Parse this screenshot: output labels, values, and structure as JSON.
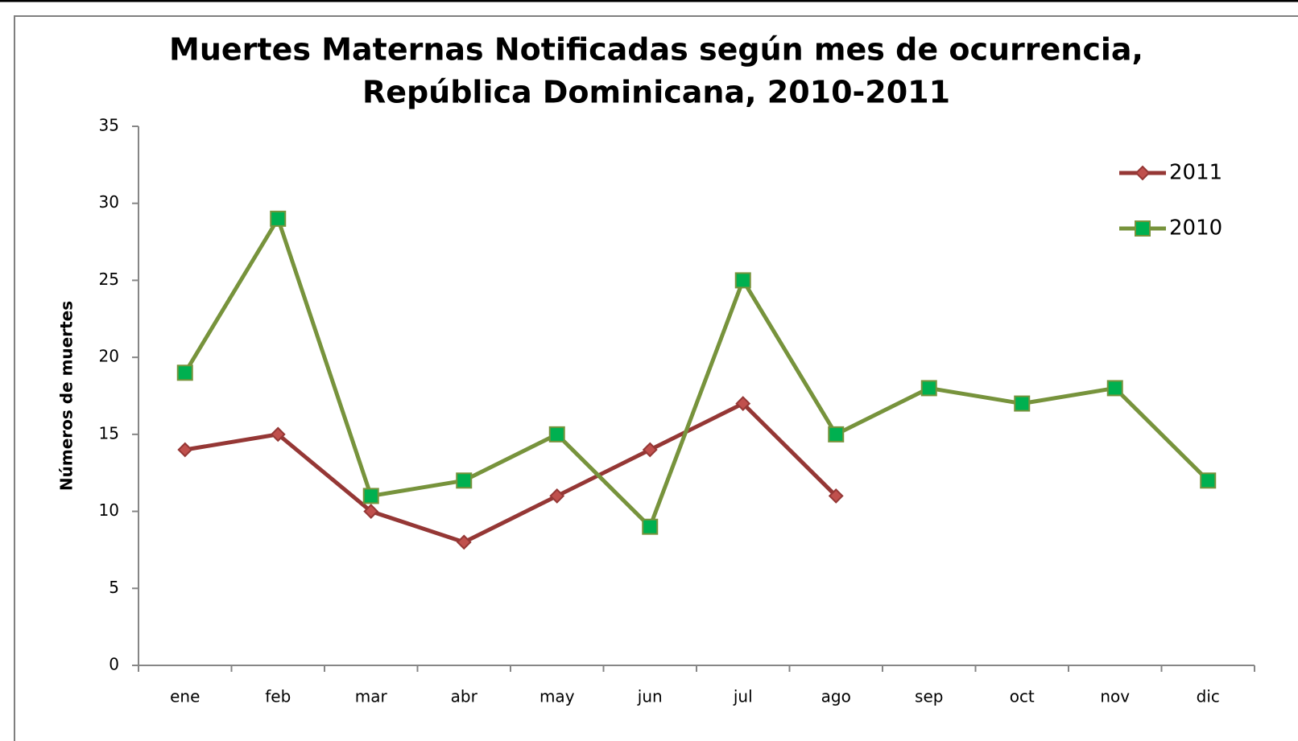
{
  "chart_data": {
    "type": "line",
    "title": [
      "Muertes Maternas Notificadas según mes de ocurrencia,",
      "República Dominicana, 2010-2011"
    ],
    "y_label": "Números de muertes",
    "categories": [
      "ene",
      "feb",
      "mar",
      "abr",
      "may",
      "jun",
      "jul",
      "ago",
      "sep",
      "oct",
      "nov",
      "dic"
    ],
    "series": [
      {
        "name": "2011",
        "color": "#953735",
        "marker_color": "#c0504d",
        "marker": "diamond",
        "values": [
          14,
          15,
          10,
          8,
          11,
          14,
          17,
          11,
          null,
          null,
          null,
          null
        ]
      },
      {
        "name": "2010",
        "color": "#77933c",
        "marker_color": "#00b050",
        "marker": "square",
        "values": [
          19,
          29,
          11,
          12,
          15,
          9,
          25,
          15,
          18,
          17,
          18,
          12
        ]
      }
    ],
    "ylim": [
      0,
      35
    ],
    "yticks": [
      0,
      5,
      10,
      15,
      20,
      25,
      30,
      35
    ],
    "grid": false,
    "legend": "top-right"
  }
}
